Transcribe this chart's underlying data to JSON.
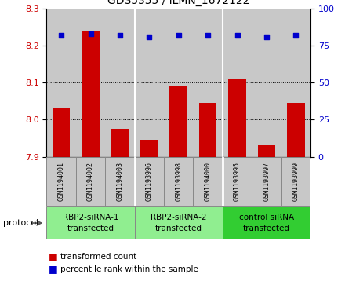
{
  "title": "GDS5355 / ILMN_1672122",
  "samples": [
    "GSM1194001",
    "GSM1194002",
    "GSM1194003",
    "GSM1193996",
    "GSM1193998",
    "GSM1194000",
    "GSM1193995",
    "GSM1193997",
    "GSM1193999"
  ],
  "bar_values": [
    8.03,
    8.24,
    7.975,
    7.945,
    8.09,
    8.045,
    8.11,
    7.93,
    8.045
  ],
  "percentile_values": [
    82,
    83,
    82,
    81,
    82,
    82,
    82,
    81,
    82
  ],
  "ylim_left": [
    7.9,
    8.3
  ],
  "ylim_right": [
    0,
    100
  ],
  "yticks_left": [
    7.9,
    8.0,
    8.1,
    8.2,
    8.3
  ],
  "yticks_right": [
    0,
    25,
    50,
    75,
    100
  ],
  "bar_color": "#cc0000",
  "scatter_color": "#0000cc",
  "bar_width": 0.6,
  "baseline": 7.9,
  "title_fontsize": 10,
  "tick_fontsize": 8,
  "sample_fontsize": 6,
  "group_fontsize": 7.5,
  "legend_fontsize": 7.5,
  "protocol_fontsize": 8,
  "group_labels": [
    "RBP2-siRNA-1\ntransfected",
    "RBP2-siRNA-2\ntransfected",
    "control siRNA\ntransfected"
  ],
  "group_starts": [
    0,
    3,
    6
  ],
  "group_ends": [
    3,
    6,
    9
  ],
  "group_colors": [
    "#90ee90",
    "#90ee90",
    "#32cd32"
  ],
  "legend_bar_label": "transformed count",
  "legend_scatter_label": "percentile rank within the sample",
  "protocol_label": "protocol",
  "column_bg_color": "#c8c8c8",
  "plot_bg_color": "#ffffff",
  "dotted_line_levels": [
    8.0,
    8.1,
    8.2
  ]
}
